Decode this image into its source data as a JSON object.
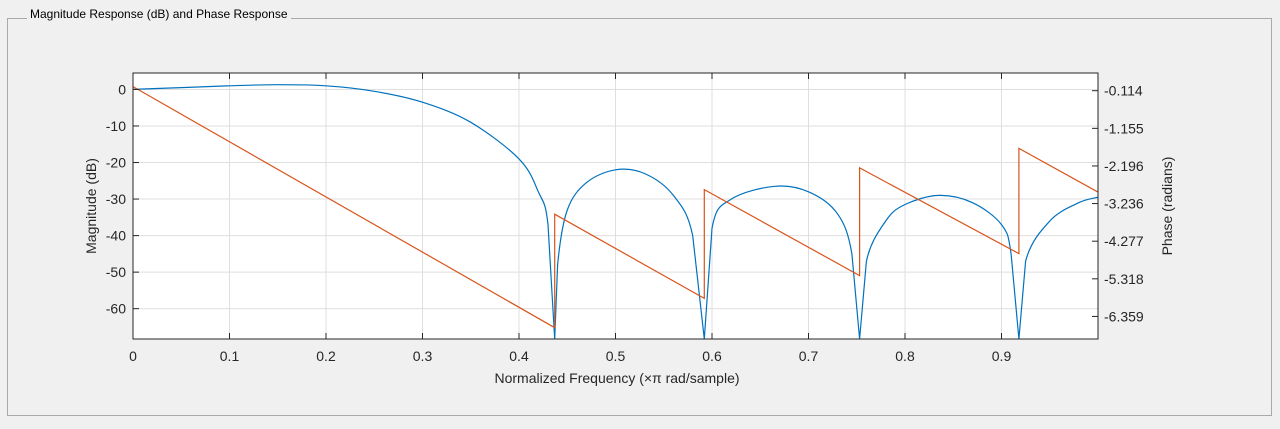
{
  "panel": {
    "title": "Magnitude Response (dB) and Phase Response"
  },
  "colors": {
    "magnitude": "#0072bd",
    "phase": "#d95319",
    "grid": "#dfdfdf",
    "axis": "#262626",
    "background": "#ffffff"
  },
  "chart_data": {
    "type": "line",
    "title": "",
    "xlabel": "Normalized Frequency (×π rad/sample)",
    "ylabel": "Magnitude (dB)",
    "y2label": "Phase (radians)",
    "xlim": [
      0,
      1
    ],
    "ylim": [
      -68.3,
      4.5
    ],
    "y2lim": [
      -6.983,
      0.376
    ],
    "grid": true,
    "x_ticks": [
      0,
      0.1,
      0.2,
      0.3,
      0.4,
      0.5,
      0.6,
      0.7,
      0.8,
      0.9
    ],
    "x_tick_labels": [
      "0",
      "0.1",
      "0.2",
      "0.3",
      "0.4",
      "0.5",
      "0.6",
      "0.7",
      "0.8",
      "0.9"
    ],
    "y_ticks": [
      0,
      -10,
      -20,
      -30,
      -40,
      -50,
      -60
    ],
    "y_tick_labels": [
      "0",
      "-10",
      "-20",
      "-30",
      "-40",
      "-50",
      "-60"
    ],
    "y2_ticks": [
      -0.114,
      -1.155,
      -2.196,
      -3.236,
      -4.277,
      -5.318,
      -6.359
    ],
    "y2_tick_labels": [
      "-0.114",
      "-1.155",
      "-2.196",
      "-3.236",
      "-4.277",
      "-5.318",
      "-6.359"
    ],
    "series": [
      {
        "axis": "left",
        "points": [
          [
            0,
            0
          ],
          [
            0.05,
            0.5
          ],
          [
            0.1,
            1.0
          ],
          [
            0.15,
            1.3
          ],
          [
            0.2,
            1.0
          ],
          [
            0.25,
            -0.5
          ],
          [
            0.3,
            -3.5
          ],
          [
            0.35,
            -9
          ],
          [
            0.4,
            -19
          ],
          [
            0.42,
            -28
          ],
          [
            0.43,
            -37
          ],
          [
            0.437,
            -68.3
          ],
          [
            0.44,
            -48
          ],
          [
            0.45,
            -33
          ],
          [
            0.47,
            -25.5
          ],
          [
            0.5,
            -22
          ],
          [
            0.53,
            -23
          ],
          [
            0.56,
            -29
          ],
          [
            0.58,
            -40
          ],
          [
            0.592,
            -68.3
          ],
          [
            0.6,
            -38
          ],
          [
            0.62,
            -30
          ],
          [
            0.665,
            -26.5
          ],
          [
            0.7,
            -28
          ],
          [
            0.73,
            -34
          ],
          [
            0.745,
            -45
          ],
          [
            0.753,
            -68.3
          ],
          [
            0.76,
            -47
          ],
          [
            0.78,
            -36
          ],
          [
            0.8,
            -31.5
          ],
          [
            0.835,
            -29
          ],
          [
            0.87,
            -31
          ],
          [
            0.9,
            -37
          ],
          [
            0.91,
            -45
          ],
          [
            0.918,
            -68.3
          ],
          [
            0.925,
            -47
          ],
          [
            0.95,
            -36
          ],
          [
            0.98,
            -31
          ],
          [
            1.0,
            -29.5
          ]
        ]
      },
      {
        "axis": "right",
        "points": [
          [
            0,
            0.0
          ],
          [
            0.437,
            -6.67
          ],
          [
            0.437,
            -3.53
          ],
          [
            0.592,
            -5.86
          ],
          [
            0.592,
            -2.85
          ],
          [
            0.753,
            -5.23
          ],
          [
            0.753,
            -2.25
          ],
          [
            0.918,
            -4.62
          ],
          [
            0.918,
            -1.71
          ],
          [
            1.0,
            -2.92
          ]
        ]
      }
    ]
  }
}
